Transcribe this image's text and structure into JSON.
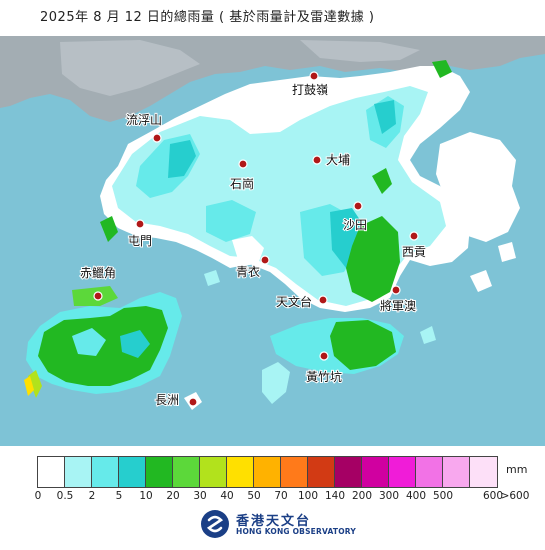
{
  "title": "2025年  8  月 12 日的總雨量 ( 基於雨量計及雷達數據 )",
  "places": [
    {
      "id": "ta-kwu-ling",
      "name": "打鼓嶺"
    },
    {
      "id": "lau-fau-shan",
      "name": "流浮山"
    },
    {
      "id": "tai-po",
      "name": "大埔"
    },
    {
      "id": "shek-kong",
      "name": "石崗"
    },
    {
      "id": "sha-tin",
      "name": "沙田"
    },
    {
      "id": "tuen-mun",
      "name": "屯門"
    },
    {
      "id": "sai-kung",
      "name": "西貢"
    },
    {
      "id": "chek-lap-kok",
      "name": "赤鱲角"
    },
    {
      "id": "tsing-yi",
      "name": "青衣"
    },
    {
      "id": "tsim-sha-tsui",
      "name": "天文台"
    },
    {
      "id": "tseung-kwan-o",
      "name": "將軍澳"
    },
    {
      "id": "wong-chuk-hang",
      "name": "黃竹坑"
    },
    {
      "id": "cheung-chau",
      "name": "長洲"
    }
  ],
  "legend": {
    "unit": "mm",
    "ticks": [
      "0",
      "0.5",
      "2",
      "5",
      "10",
      "20",
      "30",
      "40",
      "50",
      "70",
      "100",
      "140",
      "200",
      "300",
      "400",
      "500",
      "600",
      ">600"
    ],
    "colors": [
      "#ffffff",
      "#a8f4f4",
      "#66eaea",
      "#26cece",
      "#22b822",
      "#5cd83a",
      "#b2e21c",
      "#ffe000",
      "#ffb200",
      "#ff7a1a",
      "#d23a14",
      "#a50064",
      "#d000a0",
      "#f01cd8",
      "#f272e6",
      "#f8a8ee",
      "#fde0f8"
    ]
  },
  "logo": {
    "name_zh": "香港天文台",
    "name_en": "HONG KONG OBSERVATORY"
  },
  "colors": {
    "sea": "#7ec3d6",
    "mainland": "#9fa9b0",
    "no_rain_land": "#ffffff",
    "rain_0_5_2": "#a8f4f4",
    "rain_2_5": "#66eaea",
    "rain_5_10": "#26cece",
    "rain_10_20": "#22b822",
    "rain_20_30": "#5cd83a",
    "rain_30_40": "#b2e21c",
    "rain_40_50": "#ffe000",
    "station_dot": "#b01818"
  }
}
